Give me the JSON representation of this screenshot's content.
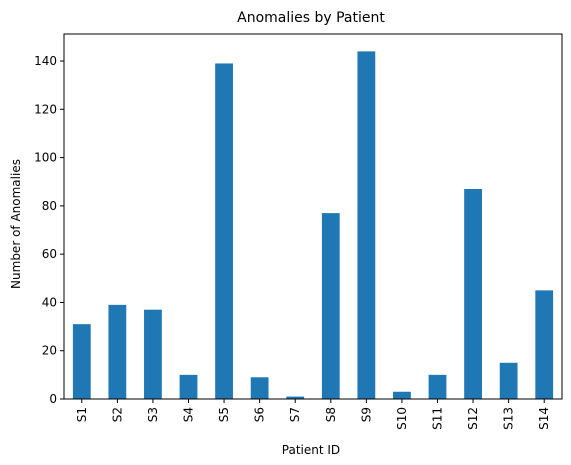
{
  "chart_data": {
    "type": "bar",
    "title": "Anomalies by Patient",
    "xlabel": "Patient ID",
    "ylabel": "Number of Anomalies",
    "categories": [
      "S1",
      "S2",
      "S3",
      "S4",
      "S5",
      "S6",
      "S7",
      "S8",
      "S9",
      "S10",
      "S11",
      "S12",
      "S13",
      "S14"
    ],
    "values": [
      31,
      39,
      37,
      10,
      139,
      9,
      1,
      77,
      144,
      3,
      10,
      87,
      15,
      45
    ],
    "ylim": [
      0,
      151.2
    ],
    "yticks": [
      0,
      20,
      40,
      60,
      80,
      100,
      120,
      140
    ],
    "bar_color": "#1f77b4",
    "grid": false,
    "legend": "none"
  }
}
